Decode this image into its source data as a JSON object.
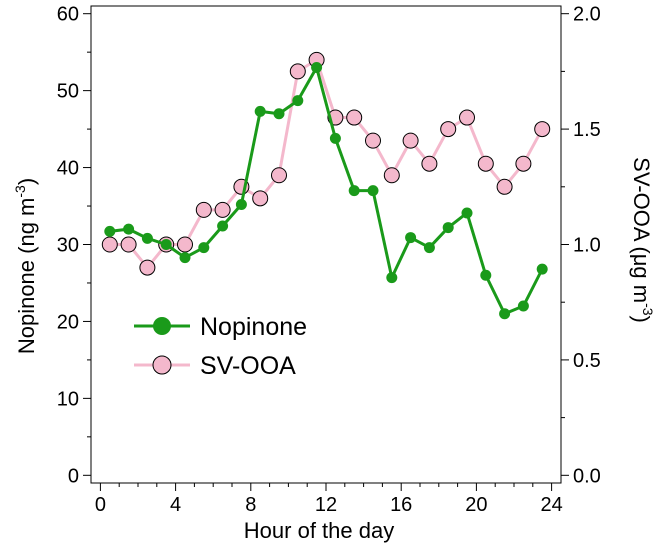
{
  "chart_data": {
    "type": "line",
    "x": [
      0.5,
      1.5,
      2.5,
      3.5,
      4.5,
      5.5,
      6.5,
      7.5,
      8.5,
      9.5,
      10.5,
      11.5,
      12.5,
      13.5,
      14.5,
      15.5,
      16.5,
      17.5,
      18.5,
      19.5,
      20.5,
      21.5,
      22.5,
      23.5
    ],
    "xlabel": "Hour of the day",
    "xlim": [
      -0.5,
      24.5
    ],
    "xticks": [
      0,
      4,
      8,
      12,
      16,
      20,
      24
    ],
    "y_left": {
      "label_main": "Nopinone (ng m",
      "label_sup": "-3",
      "label_tail": ")",
      "lim": [
        -1,
        61
      ],
      "ticks": [
        0,
        10,
        20,
        30,
        40,
        50,
        60
      ]
    },
    "y_right": {
      "label_main": "SV-OOA (μg m",
      "label_sup": "-3",
      "label_tail": ")",
      "lim": [
        -0.0333,
        2.0333
      ],
      "ticks": [
        "0.0",
        "0.5",
        "1.0",
        "1.5",
        "2.0"
      ]
    },
    "series": [
      {
        "name": "Nopinone",
        "axis": "left",
        "color": "#1a9a1a",
        "values": [
          31.7,
          32.0,
          30.8,
          30.0,
          28.3,
          29.6,
          32.4,
          35.2,
          47.3,
          47.0,
          48.7,
          53.0,
          43.8,
          37.0,
          37.0,
          25.7,
          30.9,
          29.6,
          32.2,
          34.1,
          26.0,
          21.0,
          22.0,
          26.8
        ]
      },
      {
        "name": "SV-OOA",
        "axis": "right",
        "color": "#f4b8cc",
        "values": [
          1.0,
          1.0,
          0.9,
          1.0,
          1.0,
          1.15,
          1.15,
          1.25,
          1.2,
          1.3,
          1.75,
          1.8,
          1.55,
          1.55,
          1.45,
          1.3,
          1.45,
          1.35,
          1.5,
          1.55,
          1.35,
          1.25,
          1.35,
          1.5
        ]
      }
    ],
    "grid": false,
    "legend_position": "lower-left"
  }
}
